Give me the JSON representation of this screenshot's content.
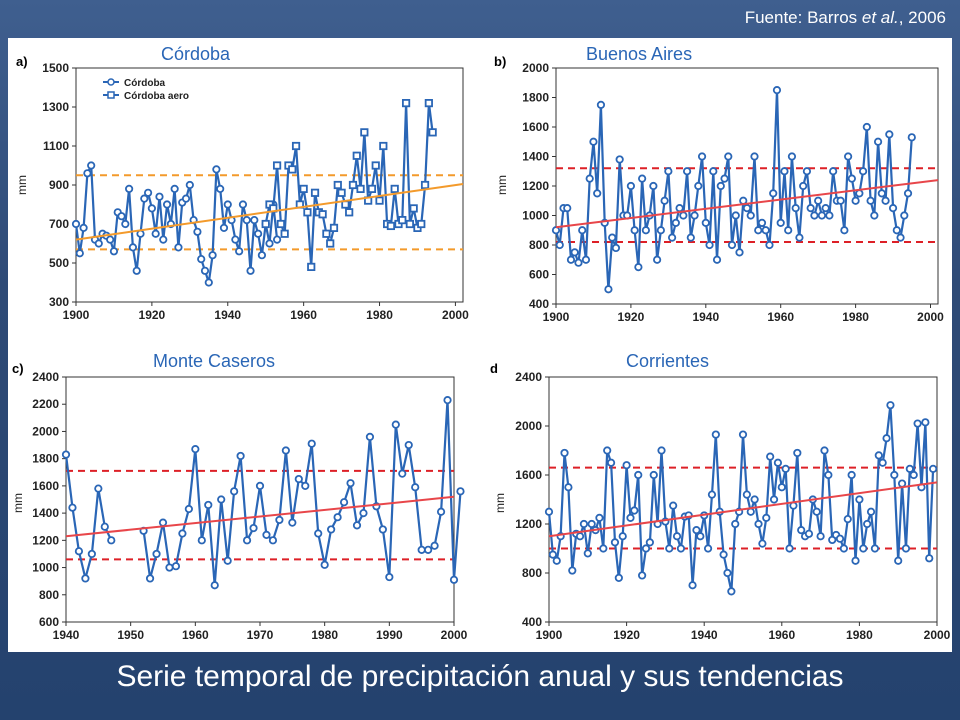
{
  "source": {
    "prefix": "Fuente: Barros ",
    "italic": "et al.",
    "suffix": ", 2006"
  },
  "caption": "Serie temporal de precipitación anual y sus tendencias",
  "colors": {
    "series": "#2a66b6",
    "trend_orange": "#f39a2b",
    "trend_red": "#e8464a",
    "band_orange": "#f39a2b",
    "band_red": "#dd2027"
  },
  "chart_data": [
    {
      "id": "a",
      "letter": "a)",
      "title": "Córdoba",
      "type": "line",
      "ylabel": "mm",
      "xlim": [
        1900,
        2002
      ],
      "ylim": [
        300,
        1500
      ],
      "xticks": [
        1900,
        1920,
        1940,
        1960,
        1980,
        2000
      ],
      "yticks": [
        300,
        500,
        700,
        900,
        1100,
        1300,
        1500
      ],
      "legend": {
        "position": "top-left",
        "items": [
          {
            "label": "Córdoba",
            "marker": "circle"
          },
          {
            "label": "Córdoba aero",
            "marker": "square"
          }
        ]
      },
      "trend": {
        "color": "orange",
        "start": [
          1900,
          620
        ],
        "end": [
          2002,
          905
        ]
      },
      "bands": [
        950,
        570
      ],
      "series": [
        {
          "name": "Córdoba",
          "marker": "circle",
          "start_year": 1900,
          "values": [
            700,
            550,
            680,
            960,
            1000,
            620,
            600,
            650,
            640,
            620,
            560,
            760,
            740,
            700,
            880,
            580,
            460,
            650,
            830,
            860,
            780,
            650,
            840,
            620,
            800,
            700,
            880,
            580,
            810,
            830,
            900,
            720,
            660,
            520,
            460,
            400,
            540,
            980,
            880,
            680,
            800,
            720,
            620,
            560,
            800,
            720,
            460,
            720,
            650,
            540,
            700,
            600,
            800,
            620
          ]
        },
        {
          "name": "Córdoba aero",
          "marker": "square",
          "start_year": 1950,
          "values": [
            700,
            800,
            780,
            1000,
            700,
            650,
            1000,
            980,
            1100,
            800,
            880,
            760,
            480,
            860,
            760,
            750,
            650,
            600,
            680,
            900,
            860,
            800,
            760,
            900,
            1050,
            880,
            1170,
            820,
            880,
            1000,
            820,
            1100,
            700,
            690,
            880,
            700,
            720,
            1320,
            700,
            780,
            680,
            700,
            900,
            1320,
            1170
          ]
        }
      ]
    },
    {
      "id": "b",
      "letter": "b)",
      "title": "Buenos Aires",
      "type": "line",
      "ylabel": "mm",
      "xlim": [
        1900,
        2002
      ],
      "ylim": [
        400,
        2000
      ],
      "xticks": [
        1900,
        1920,
        1940,
        1960,
        1980,
        2000
      ],
      "yticks": [
        400,
        600,
        800,
        1000,
        1200,
        1400,
        1600,
        1800,
        2000
      ],
      "trend": {
        "color": "red",
        "start": [
          1900,
          920
        ],
        "end": [
          2002,
          1240
        ]
      },
      "bands": [
        1320,
        820
      ],
      "series": [
        {
          "name": "Buenos Aires",
          "marker": "circle",
          "start_year": 1900,
          "values": [
            900,
            800,
            1050,
            1050,
            700,
            750,
            680,
            900,
            700,
            1250,
            1500,
            1150,
            1750,
            950,
            500,
            850,
            780,
            1380,
            1000,
            1000,
            1200,
            900,
            650,
            1250,
            900,
            1000,
            1200,
            700,
            900,
            1100,
            1300,
            850,
            950,
            1050,
            1000,
            1300,
            850,
            1000,
            1200,
            1400,
            950,
            800,
            1300,
            700,
            1200,
            1250,
            1400,
            800,
            1000,
            750,
            1100,
            1050,
            1000,
            1400,
            900,
            950,
            900,
            800,
            1150,
            1850,
            950,
            1300,
            900,
            1400,
            1050,
            850,
            1200,
            1300,
            1050,
            1000,
            1100,
            1000,
            1050,
            1000,
            1300,
            1100,
            1100,
            900,
            1400,
            1250,
            1100,
            1150,
            1300,
            1600,
            1100,
            1000,
            1500,
            1150,
            1100,
            1550,
            1050,
            900,
            850,
            1000,
            1150,
            1530
          ]
        }
      ]
    },
    {
      "id": "c",
      "letter": "c)",
      "title": "Monte Caseros",
      "type": "line",
      "ylabel": "mm",
      "xlim": [
        1940,
        2000
      ],
      "ylim": [
        600,
        2400
      ],
      "xticks": [
        1940,
        1950,
        1960,
        1970,
        1980,
        1990,
        2000
      ],
      "yticks": [
        600,
        800,
        1000,
        1200,
        1400,
        1600,
        1800,
        2000,
        2200,
        2400
      ],
      "trend": {
        "color": "red",
        "start": [
          1940,
          1230
        ],
        "end": [
          2000,
          1520
        ]
      },
      "bands": [
        1710,
        1060
      ],
      "series": [
        {
          "name": "Monte Caseros",
          "marker": "circle",
          "start_year": 1940,
          "segment_break_after": 1946,
          "resume_year": 1952,
          "values": [
            1830,
            1440,
            1120,
            920,
            1100,
            1580,
            1300,
            1200,
            null,
            null,
            null,
            null,
            1270,
            920,
            1100,
            1330,
            1000,
            1010,
            1250,
            1430,
            1870,
            1200,
            1460,
            870,
            1500,
            1050,
            1560,
            1820,
            1200,
            1290,
            1600,
            1240,
            1200,
            1350,
            1860,
            1330,
            1650,
            1600,
            1910,
            1250,
            1020,
            1280,
            1370,
            1480,
            1620,
            1310,
            1400,
            1960,
            1450,
            1280,
            930,
            2050,
            1690,
            1900,
            1590,
            1130,
            1130,
            1160,
            1410,
            2230,
            910,
            1560
          ]
        }
      ]
    },
    {
      "id": "d",
      "letter": "d",
      "title": "Corrientes",
      "type": "line",
      "ylabel": "mm",
      "xlim": [
        1900,
        2000
      ],
      "ylim": [
        400,
        2400
      ],
      "xticks": [
        1900,
        1920,
        1940,
        1960,
        1980,
        2000
      ],
      "yticks": [
        400,
        800,
        1200,
        1600,
        2000,
        2400
      ],
      "trend": {
        "color": "red",
        "start": [
          1900,
          1100
        ],
        "end": [
          2000,
          1540
        ]
      },
      "bands": [
        1660,
        1000
      ],
      "series": [
        {
          "name": "Corrientes",
          "marker": "circle",
          "start_year": 1900,
          "values": [
            1300,
            950,
            900,
            1100,
            1780,
            1500,
            820,
            1120,
            1100,
            1200,
            960,
            1200,
            1150,
            1250,
            1000,
            1800,
            1700,
            1050,
            760,
            1100,
            1680,
            1250,
            1310,
            1600,
            780,
            1000,
            1050,
            1600,
            1200,
            1800,
            1220,
            1000,
            1350,
            1100,
            1000,
            1260,
            1270,
            700,
            1150,
            1100,
            1270,
            1000,
            1440,
            1930,
            1300,
            950,
            800,
            650,
            1200,
            1300,
            1930,
            1440,
            1300,
            1400,
            1200,
            1040,
            1250,
            1750,
            1400,
            1700,
            1500,
            1650,
            1000,
            1350,
            1780,
            1150,
            1100,
            1120,
            1400,
            1300,
            1100,
            1800,
            1600,
            1070,
            1110,
            1080,
            1000,
            1240,
            1600,
            900,
            1400,
            1000,
            1200,
            1300,
            1000,
            1760,
            1700,
            1900,
            2170,
            1600,
            900,
            1530,
            1000,
            1650,
            1600,
            2020,
            1500,
            2030,
            920,
            1650
          ]
        }
      ]
    }
  ]
}
